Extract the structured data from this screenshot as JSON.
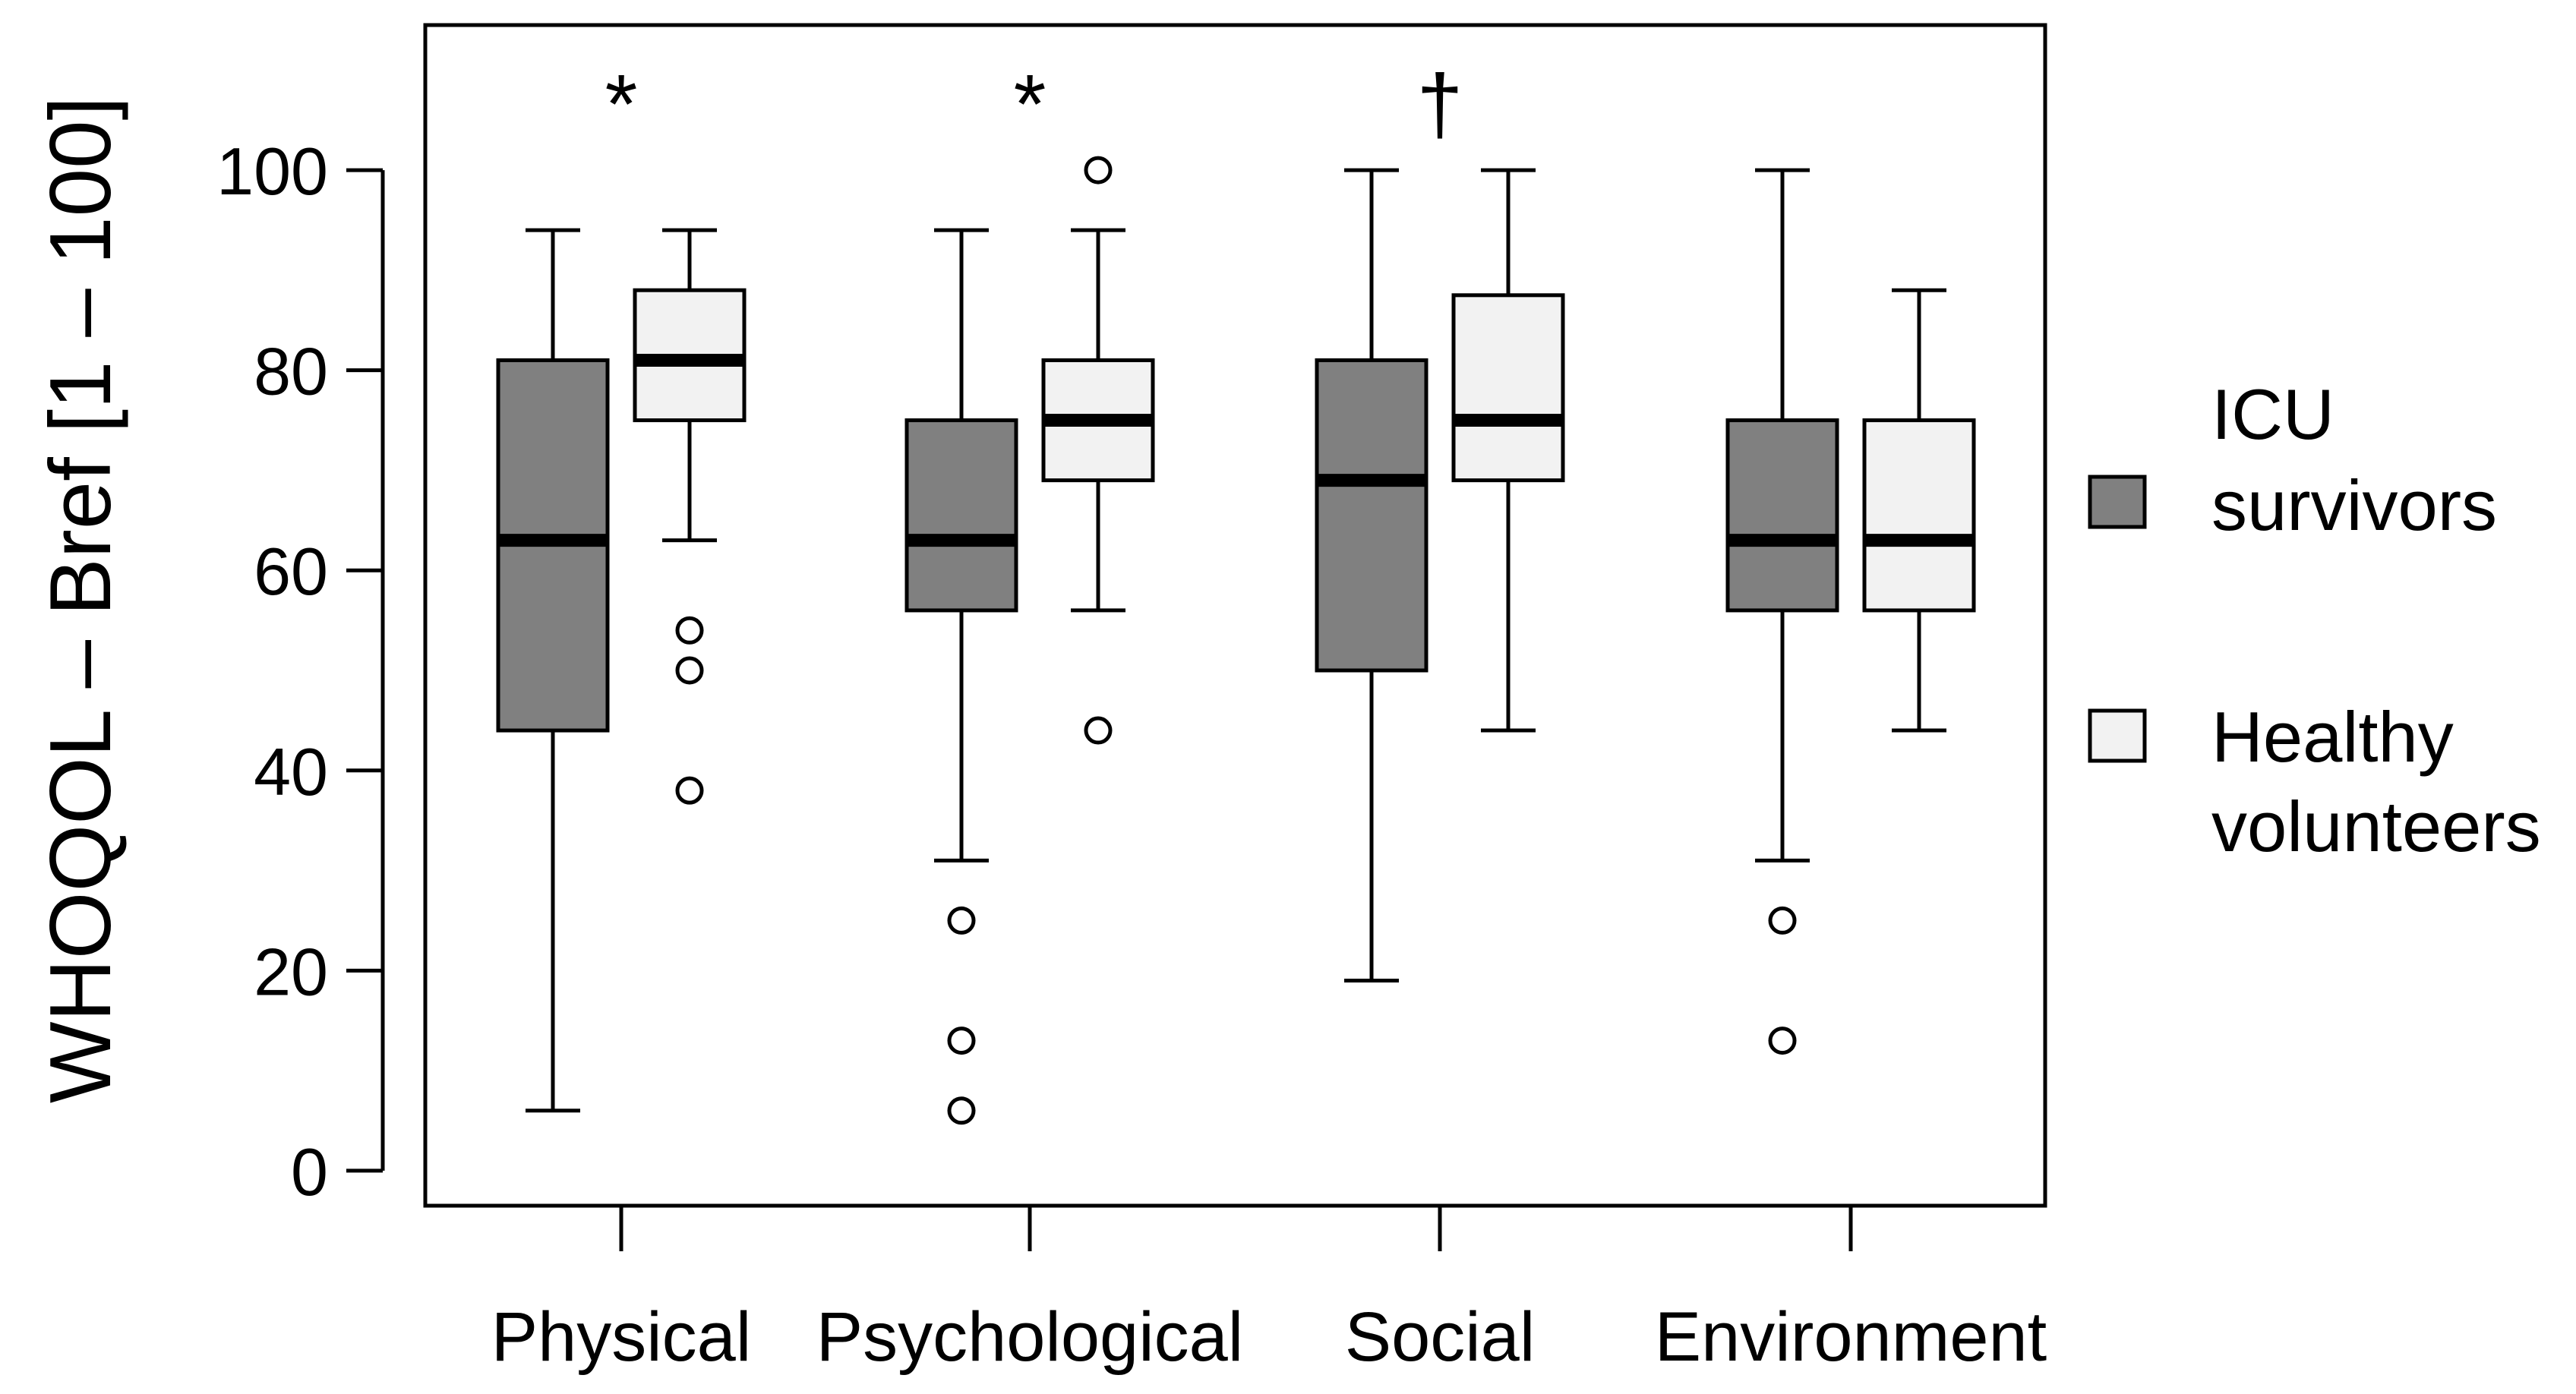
{
  "chart_data": {
    "type": "boxplot",
    "ylabel": "WHOQOL – Bref [1 – 100]",
    "xlabel": "",
    "ylim": [
      -3.5,
      114.5
    ],
    "yticks": [
      0,
      20,
      40,
      60,
      80,
      100
    ],
    "categories": [
      "Physical",
      "Psychological",
      "Social",
      "Environment"
    ],
    "annotations": [
      "*",
      "*",
      "†",
      ""
    ],
    "series": [
      {
        "name": "ICU survivors",
        "legend_lines": [
          "ICU",
          "survivors"
        ],
        "color": "#808080",
        "boxes": [
          {
            "whisker_low": 6,
            "q1": 44,
            "median": 63,
            "q3": 81,
            "whisker_high": 94,
            "outliers": []
          },
          {
            "whisker_low": 31,
            "q1": 56,
            "median": 63,
            "q3": 75,
            "whisker_high": 94,
            "outliers": [
              25,
              13,
              6
            ]
          },
          {
            "whisker_low": 19,
            "q1": 50,
            "median": 69,
            "q3": 81,
            "whisker_high": 100,
            "outliers": []
          },
          {
            "whisker_low": 31,
            "q1": 56,
            "median": 63,
            "q3": 75,
            "whisker_high": 100,
            "outliers": [
              25,
              13
            ]
          }
        ]
      },
      {
        "name": "Healthy volunteers",
        "legend_lines": [
          "Healthy",
          "volunteers"
        ],
        "color": "#f2f2f2",
        "boxes": [
          {
            "whisker_low": 63,
            "q1": 75,
            "median": 81,
            "q3": 88,
            "whisker_high": 94,
            "outliers": [
              54,
              50,
              38
            ]
          },
          {
            "whisker_low": 56,
            "q1": 69,
            "median": 75,
            "q3": 81,
            "whisker_high": 94,
            "outliers": [
              100,
              44
            ]
          },
          {
            "whisker_low": 44,
            "q1": 69,
            "median": 75,
            "q3": 87.5,
            "whisker_high": 100,
            "outliers": []
          },
          {
            "whisker_low": 44,
            "q1": 56,
            "median": 63,
            "q3": 75,
            "whisker_high": 88,
            "outliers": []
          }
        ]
      }
    ]
  }
}
